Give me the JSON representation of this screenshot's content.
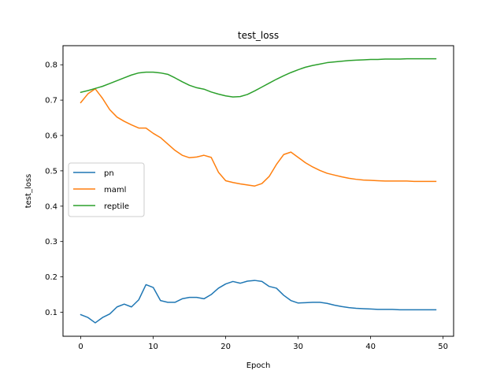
{
  "chart_data": {
    "type": "line",
    "title": "test_loss",
    "xlabel": "Epoch",
    "ylabel": "test_loss",
    "xlim": [
      -2.45,
      51.45
    ],
    "ylim": [
      0.032,
      0.854
    ],
    "xticks": [
      0,
      10,
      20,
      30,
      40,
      50
    ],
    "yticks": [
      0.1,
      0.2,
      0.3,
      0.4,
      0.5,
      0.6,
      0.7,
      0.8
    ],
    "grid": false,
    "legend_position": "center-left",
    "x": [
      0,
      1,
      2,
      3,
      4,
      5,
      6,
      7,
      8,
      9,
      10,
      11,
      12,
      13,
      14,
      15,
      16,
      17,
      18,
      19,
      20,
      21,
      22,
      23,
      24,
      25,
      26,
      27,
      28,
      29,
      30,
      31,
      32,
      33,
      34,
      35,
      36,
      37,
      38,
      39,
      40,
      41,
      42,
      43,
      44,
      45,
      46,
      47,
      48,
      49
    ],
    "series": [
      {
        "name": "pn",
        "color": "#1f77b4",
        "values": [
          0.093,
          0.085,
          0.07,
          0.085,
          0.095,
          0.115,
          0.123,
          0.115,
          0.135,
          0.178,
          0.17,
          0.133,
          0.128,
          0.128,
          0.138,
          0.142,
          0.142,
          0.138,
          0.15,
          0.168,
          0.18,
          0.187,
          0.182,
          0.188,
          0.19,
          0.187,
          0.173,
          0.168,
          0.148,
          0.133,
          0.126,
          0.127,
          0.128,
          0.128,
          0.125,
          0.12,
          0.116,
          0.113,
          0.111,
          0.11,
          0.109,
          0.108,
          0.108,
          0.108,
          0.107,
          0.107,
          0.107,
          0.107,
          0.107,
          0.107
        ]
      },
      {
        "name": "maml",
        "color": "#ff7f0e",
        "values": [
          0.693,
          0.718,
          0.732,
          0.705,
          0.673,
          0.652,
          0.64,
          0.63,
          0.621,
          0.621,
          0.606,
          0.594,
          0.576,
          0.558,
          0.544,
          0.537,
          0.539,
          0.544,
          0.538,
          0.496,
          0.472,
          0.467,
          0.463,
          0.46,
          0.457,
          0.464,
          0.484,
          0.518,
          0.546,
          0.553,
          0.538,
          0.523,
          0.511,
          0.501,
          0.493,
          0.488,
          0.483,
          0.479,
          0.476,
          0.474,
          0.473,
          0.472,
          0.471,
          0.471,
          0.471,
          0.471,
          0.47,
          0.47,
          0.47,
          0.47
        ]
      },
      {
        "name": "reptile",
        "color": "#2ca02c",
        "values": [
          0.722,
          0.727,
          0.733,
          0.739,
          0.747,
          0.755,
          0.763,
          0.771,
          0.777,
          0.779,
          0.779,
          0.777,
          0.773,
          0.763,
          0.752,
          0.742,
          0.735,
          0.731,
          0.723,
          0.717,
          0.712,
          0.709,
          0.71,
          0.716,
          0.726,
          0.737,
          0.748,
          0.759,
          0.769,
          0.778,
          0.786,
          0.793,
          0.798,
          0.802,
          0.806,
          0.808,
          0.81,
          0.812,
          0.813,
          0.814,
          0.815,
          0.815,
          0.816,
          0.816,
          0.816,
          0.817,
          0.817,
          0.817,
          0.817,
          0.817
        ]
      }
    ]
  }
}
